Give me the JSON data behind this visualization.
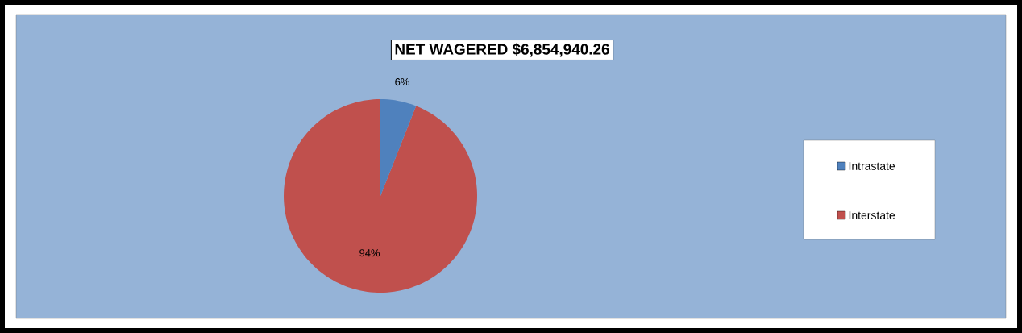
{
  "chart_data": {
    "type": "pie",
    "title": "NET WAGERED $6,854,940.26",
    "categories": [
      "Intrastate",
      "Interstate"
    ],
    "values": [
      6,
      94
    ],
    "value_labels": [
      "6%",
      "94%"
    ],
    "colors": [
      "#4f81bd",
      "#c0504d"
    ],
    "legend": "right"
  }
}
